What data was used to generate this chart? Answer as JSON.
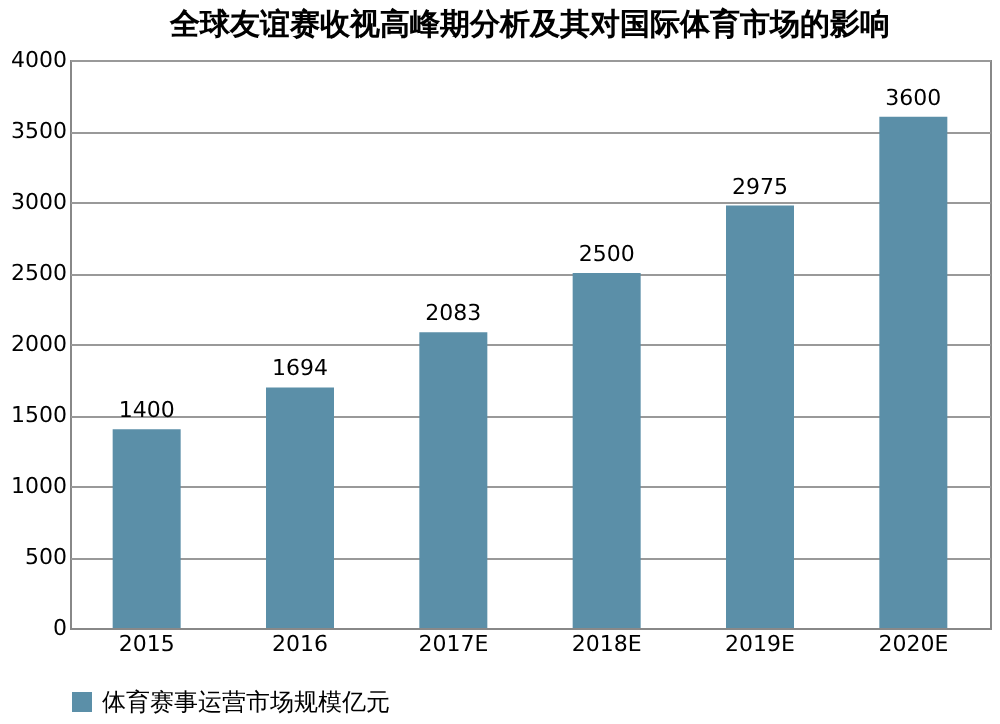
{
  "chart_data": {
    "type": "bar",
    "title": "全球友谊赛收视高峰期分析及其对国际体育市场的影响",
    "categories": [
      "2015",
      "2016",
      "2017E",
      "2018E",
      "2019E",
      "2020E"
    ],
    "series": [
      {
        "name": "体育赛事运营市场规模亿元",
        "color": "#5b8fa8",
        "values": [
          1400,
          1694,
          2083,
          2500,
          2975,
          3600
        ]
      }
    ],
    "ylim": [
      0,
      4000
    ],
    "yticks": [
      0,
      500,
      1000,
      1500,
      2000,
      2500,
      3000,
      3500,
      4000
    ],
    "grid": "y",
    "legend": "bottom",
    "data_labels": true
  }
}
